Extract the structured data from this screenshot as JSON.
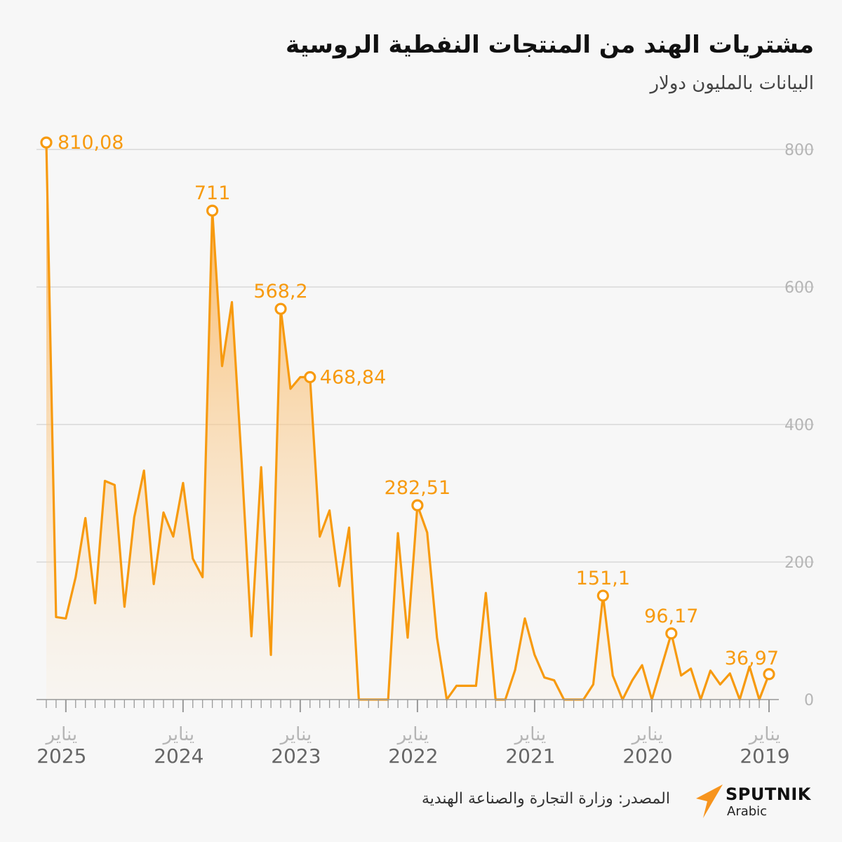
{
  "header": {
    "title": "مشتريات الهند من المنتجات النفطية الروسية",
    "subtitle": "البيانات بالمليون دولار"
  },
  "footer": {
    "source": "المصدر: وزارة التجارة والصناعة الهندية",
    "brand_name": "SPUTNIK",
    "brand_sub": "Arabic"
  },
  "colors": {
    "line": "#f79a0f",
    "area_top": "#f9a63c",
    "grid": "#d9d9d9",
    "tick_label": "#b5b5b5",
    "axis": "#999999"
  },
  "chart_data": {
    "type": "area",
    "x_direction": "right-to-left",
    "x_start": "2019-01",
    "x_end": "2025-01",
    "x_tick_month_label": "يناير",
    "x_tick_years": [
      "2019",
      "2020",
      "2021",
      "2022",
      "2023",
      "2024",
      "2025"
    ],
    "ylim": [
      0,
      800
    ],
    "y_ticks": [
      "0",
      "200",
      "400",
      "600",
      "800"
    ],
    "grid": true,
    "values": [
      36.97,
      0,
      48,
      0,
      38,
      22,
      42,
      0,
      45,
      35,
      96.17,
      48,
      0,
      50,
      28,
      0,
      35,
      151.1,
      22,
      0,
      0,
      0,
      28,
      32,
      65,
      118,
      43,
      0,
      0,
      155,
      20,
      20,
      20,
      0,
      90,
      243,
      282.51,
      90,
      242,
      0,
      0,
      0,
      0,
      250,
      165,
      275,
      237,
      468.84,
      468.84,
      452,
      568.2,
      65,
      338,
      92,
      345,
      578,
      485,
      711,
      178,
      205,
      315,
      237,
      272,
      168,
      333,
      265,
      135,
      312,
      318,
      140,
      264,
      178,
      118,
      120,
      810.08
    ],
    "annotations": [
      {
        "index": 0,
        "label": "36,97"
      },
      {
        "index": 10,
        "label": "96,17"
      },
      {
        "index": 17,
        "label": "151,1"
      },
      {
        "index": 36,
        "label": "282,51"
      },
      {
        "index": 47,
        "label": "468,84"
      },
      {
        "index": 50,
        "label": "568,2"
      },
      {
        "index": 57,
        "label": "711"
      },
      {
        "index": 74,
        "label": "810,08"
      }
    ]
  }
}
